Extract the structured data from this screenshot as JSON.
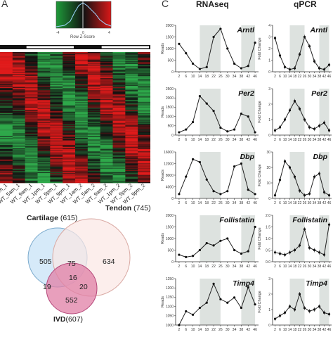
{
  "panels": {
    "a_letter": "A",
    "c_letter": "C"
  },
  "color_key": {
    "label": "Row Z-Score",
    "colors": {
      "low": "#1f9a3a",
      "mid": "#111111",
      "high": "#d81818"
    }
  },
  "heatmap": {
    "colors": {
      "low": "#2ea84a",
      "mid": "#111111",
      "high": "#e01a1a"
    },
    "sample_labels": [
      "WT_1am_1",
      "WT_5am_1",
      "WT_9am_1",
      "WT_1pm_1",
      "WT_5pm_1",
      "WT_9pm_1",
      "WT_1am_2",
      "WT_5am_2",
      "WT_9am_2",
      "WT_1pm_2",
      "WT_5pm_2",
      "WT_9pm_2"
    ]
  },
  "venn": {
    "sets": [
      {
        "name": "Cartilage",
        "count": "(615)",
        "color": "#cfe6f8"
      },
      {
        "name": "Tendon",
        "count": "(745)",
        "color": "#fbe7e4"
      },
      {
        "name": "IVD",
        "count": "(607)",
        "color": "#e07fa6"
      }
    ],
    "regions": {
      "cartilage_only": "505",
      "tendon_only": "634",
      "ivd_only": "552",
      "cartilage_tendon": "75",
      "cartilage_ivd": "19",
      "tendon_ivd": "20",
      "all_three": "16"
    }
  },
  "columns": {
    "rnaseq": "RNAseq",
    "qpcr": "qPCR"
  },
  "axis_labels": {
    "rnaseq_y": "Reads",
    "qpcr_y": "Fold Change"
  },
  "shading_color": "#dde2df",
  "chart_data": [
    {
      "type": "line",
      "gene": "Arntl",
      "method": "RNAseq",
      "x": [
        2,
        6,
        10,
        14,
        18,
        22,
        26,
        30,
        34,
        38,
        42,
        46
      ],
      "values": [
        1200,
        800,
        350,
        120,
        200,
        1500,
        1850,
        1000,
        350,
        150,
        250,
        1250
      ],
      "y_ticks": [
        "0",
        "500",
        "1000",
        "1500",
        "2000"
      ],
      "ylim": [
        0,
        2000
      ],
      "x_ticks": [
        "2",
        "6",
        "10",
        "14",
        "18",
        "22",
        "26",
        "30",
        "34",
        "38",
        "42",
        "46"
      ],
      "shaded": [
        [
          14,
          26
        ],
        [
          38,
          46
        ]
      ],
      "ylabel": "Reads"
    },
    {
      "type": "line",
      "gene": "Arntl",
      "method": "qPCR",
      "x": [
        2,
        6,
        10,
        14,
        18,
        22,
        26,
        30,
        34,
        38,
        42,
        46
      ],
      "values": [
        2.9,
        1.4,
        0.4,
        0.2,
        0.3,
        1.5,
        3.0,
        2.2,
        0.9,
        0.3,
        0.2,
        0.6
      ],
      "y_ticks": [
        "0",
        "1",
        "2",
        "3",
        "4"
      ],
      "ylim": [
        0,
        4
      ],
      "x_ticks": [
        "2",
        "6",
        "10",
        "14",
        "18",
        "22",
        "26",
        "30",
        "34",
        "38",
        "42",
        "46"
      ],
      "shaded": [
        [
          14,
          26
        ],
        [
          38,
          46
        ]
      ],
      "ylabel": "Fold Change"
    },
    {
      "type": "line",
      "gene": "Per2",
      "method": "RNAseq",
      "x": [
        2,
        6,
        10,
        14,
        18,
        22,
        26,
        30,
        34,
        38,
        42,
        46
      ],
      "values": [
        150,
        300,
        700,
        2100,
        1700,
        1300,
        400,
        200,
        300,
        1150,
        1000,
        150
      ],
      "y_ticks": [
        "0",
        "500",
        "1000",
        "1500",
        "2000",
        "2500"
      ],
      "ylim": [
        0,
        2500
      ],
      "x_ticks": [
        "2",
        "6",
        "10",
        "14",
        "18",
        "22",
        "26",
        "30",
        "34",
        "38",
        "42",
        "46"
      ],
      "shaded": [
        [
          14,
          26
        ],
        [
          38,
          46
        ]
      ],
      "ylabel": "Reads"
    },
    {
      "type": "line",
      "gene": "Per2",
      "method": "qPCR",
      "x": [
        2,
        6,
        10,
        14,
        18,
        22,
        26,
        30,
        34,
        38,
        42,
        46
      ],
      "values": [
        0.3,
        0.5,
        1.0,
        1.6,
        2.2,
        1.7,
        1.0,
        0.5,
        0.4,
        0.6,
        0.8,
        0.3
      ],
      "y_ticks": [
        "0",
        "1",
        "2",
        "3"
      ],
      "ylim": [
        0,
        3
      ],
      "x_ticks": [
        "2",
        "6",
        "10",
        "14",
        "18",
        "22",
        "26",
        "30",
        "34",
        "38",
        "42",
        "46"
      ],
      "shaded": [
        [
          14,
          26
        ],
        [
          38,
          46
        ]
      ],
      "ylabel": "Fold Change"
    },
    {
      "type": "line",
      "gene": "Dbp",
      "method": "RNAseq",
      "x": [
        2,
        6,
        10,
        14,
        18,
        22,
        26,
        30,
        34,
        38,
        42,
        46
      ],
      "values": [
        1500,
        7500,
        13500,
        12500,
        6500,
        2500,
        1500,
        2500,
        11000,
        12000,
        3000,
        1500
      ],
      "y_ticks": [
        "0",
        "4000",
        "8000",
        "12000",
        "16000"
      ],
      "ylim": [
        0,
        16000
      ],
      "x_ticks": [
        "2",
        "6",
        "10",
        "14",
        "18",
        "22",
        "26",
        "30",
        "34",
        "38",
        "42",
        "46"
      ],
      "shaded": [
        [
          14,
          26
        ],
        [
          38,
          46
        ]
      ],
      "ylabel": "Reads"
    },
    {
      "type": "line",
      "gene": "Dbp",
      "method": "qPCR",
      "x": [
        2,
        6,
        10,
        14,
        18,
        22,
        26,
        30,
        34,
        38,
        42,
        46
      ],
      "values": [
        2,
        12,
        24,
        20,
        14,
        5,
        2,
        3,
        14,
        16,
        4,
        2
      ],
      "y_ticks": [
        "0",
        "10",
        "20",
        "30"
      ],
      "ylim": [
        0,
        30
      ],
      "x_ticks": [
        "2",
        "6",
        "10",
        "14",
        "18",
        "22",
        "26",
        "30",
        "34",
        "38",
        "42",
        "46"
      ],
      "shaded": [
        [
          14,
          26
        ],
        [
          38,
          46
        ]
      ],
      "ylabel": "Fold Change"
    },
    {
      "type": "line",
      "gene": "Follistatin",
      "method": "RNAseq",
      "x": [
        2,
        6,
        10,
        14,
        18,
        22,
        26,
        30,
        34,
        38,
        42,
        46
      ],
      "values": [
        300,
        200,
        250,
        500,
        800,
        700,
        900,
        1000,
        500,
        350,
        450,
        1500
      ],
      "y_ticks": [
        "0",
        "500",
        "1000",
        "1500",
        "2000"
      ],
      "ylim": [
        0,
        2000
      ],
      "x_ticks": [
        "2",
        "6",
        "10",
        "14",
        "18",
        "22",
        "26",
        "30",
        "34",
        "38",
        "42",
        "46"
      ],
      "shaded": [
        [
          14,
          26
        ],
        [
          38,
          46
        ]
      ],
      "ylabel": "Reads"
    },
    {
      "type": "line",
      "gene": "Follistatin",
      "method": "qPCR",
      "x": [
        2,
        6,
        10,
        14,
        18,
        22,
        26,
        30,
        34,
        38,
        42,
        46
      ],
      "values": [
        0.4,
        0.35,
        0.3,
        0.4,
        0.5,
        0.7,
        1.4,
        0.6,
        0.5,
        0.4,
        0.3,
        1.6
      ],
      "y_ticks": [
        "0.0",
        "0.5",
        "1.0",
        "1.5",
        "2.0"
      ],
      "ylim": [
        0,
        2
      ],
      "x_ticks": [
        "2",
        "6",
        "10",
        "14",
        "18",
        "22",
        "26",
        "30",
        "34",
        "38",
        "42",
        "46"
      ],
      "shaded": [
        [
          14,
          26
        ],
        [
          38,
          46
        ]
      ],
      "ylabel": "Fold Change"
    },
    {
      "type": "line",
      "gene": "Timp4",
      "method": "RNAseq",
      "x": [
        2,
        6,
        10,
        14,
        18,
        22,
        26,
        30,
        34,
        38,
        42,
        46
      ],
      "values": [
        1000,
        1080,
        1060,
        1100,
        1130,
        1240,
        1150,
        1130,
        1160,
        1100,
        1220,
        1120
      ],
      "y_ticks": [
        "1000",
        "1050",
        "1100",
        "1150",
        "1200",
        "1250"
      ],
      "ylim": [
        1000,
        1270
      ],
      "x_ticks": [
        "2",
        "6",
        "10",
        "14",
        "18",
        "22",
        "26",
        "30",
        "34",
        "38",
        "42",
        "46"
      ],
      "shaded": [
        [
          14,
          26
        ],
        [
          38,
          46
        ]
      ],
      "ylabel": "Reads"
    },
    {
      "type": "line",
      "gene": "Timp4",
      "method": "qPCR",
      "x": [
        2,
        6,
        10,
        14,
        18,
        22,
        26,
        30,
        34,
        38,
        42,
        46
      ],
      "values": [
        0.4,
        0.6,
        0.8,
        1.2,
        1.0,
        2.0,
        1.1,
        0.9,
        1.0,
        1.2,
        0.8,
        0.7
      ],
      "y_ticks": [
        "0",
        "1",
        "2",
        "3"
      ],
      "ylim": [
        0,
        3
      ],
      "x_ticks": [
        "2",
        "6",
        "10",
        "14",
        "18",
        "22",
        "26",
        "30",
        "34",
        "38",
        "42",
        "46"
      ],
      "shaded": [
        [
          14,
          26
        ],
        [
          38,
          46
        ]
      ],
      "ylabel": "Fold Change"
    }
  ]
}
